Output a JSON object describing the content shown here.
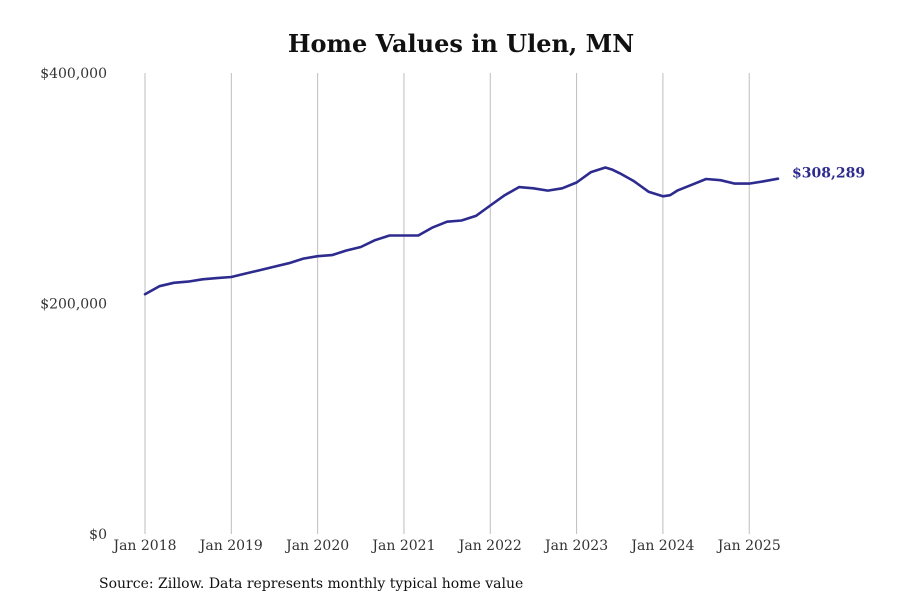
{
  "chart_data": {
    "type": "line",
    "title": "Home Values in Ulen, MN",
    "source": "Source: Zillow. Data represents monthly typical home value",
    "xlabel": "",
    "ylabel": "",
    "ylim": [
      0,
      400000
    ],
    "y_ticks": [
      {
        "value": 0,
        "label": "$0"
      },
      {
        "value": 200000,
        "label": "$200,000"
      },
      {
        "value": 400000,
        "label": "$400,000"
      }
    ],
    "x_ticks": [
      {
        "value": "2018-01",
        "label": "Jan 2018"
      },
      {
        "value": "2019-01",
        "label": "Jan 2019"
      },
      {
        "value": "2020-01",
        "label": "Jan 2020"
      },
      {
        "value": "2021-01",
        "label": "Jan 2021"
      },
      {
        "value": "2022-01",
        "label": "Jan 2022"
      },
      {
        "value": "2023-01",
        "label": "Jan 2023"
      },
      {
        "value": "2024-01",
        "label": "Jan 2024"
      },
      {
        "value": "2025-01",
        "label": "Jan 2025"
      }
    ],
    "x_range": [
      "2018-01",
      "2025-05"
    ],
    "grid": "vertical",
    "series": [
      {
        "color": "#2e2b8f",
        "end_label": "$308,289",
        "x": [
          "2018-01",
          "2018-03",
          "2018-05",
          "2018-07",
          "2018-09",
          "2018-11",
          "2019-01",
          "2019-03",
          "2019-05",
          "2019-07",
          "2019-09",
          "2019-11",
          "2020-01",
          "2020-03",
          "2020-05",
          "2020-07",
          "2020-09",
          "2020-11",
          "2021-01",
          "2021-03",
          "2021-05",
          "2021-07",
          "2021-09",
          "2021-11",
          "2022-01",
          "2022-03",
          "2022-05",
          "2022-07",
          "2022-09",
          "2022-11",
          "2023-01",
          "2023-03",
          "2023-05",
          "2023-06",
          "2023-07",
          "2023-09",
          "2023-11",
          "2024-01",
          "2024-02",
          "2024-03",
          "2024-05",
          "2024-07",
          "2024-09",
          "2024-11",
          "2025-01",
          "2025-03",
          "2025-05"
        ],
        "values": [
          208000,
          215000,
          218000,
          219000,
          221000,
          222000,
          223000,
          226000,
          229000,
          232000,
          235000,
          239000,
          241000,
          242000,
          246000,
          249000,
          255000,
          259000,
          259000,
          259000,
          266000,
          271000,
          272000,
          276000,
          285000,
          294000,
          301000,
          300000,
          298000,
          300000,
          305000,
          314000,
          318000,
          316000,
          313000,
          306000,
          297000,
          293000,
          294000,
          298000,
          303000,
          308000,
          307000,
          304000,
          304000,
          306000,
          308289
        ]
      }
    ]
  }
}
